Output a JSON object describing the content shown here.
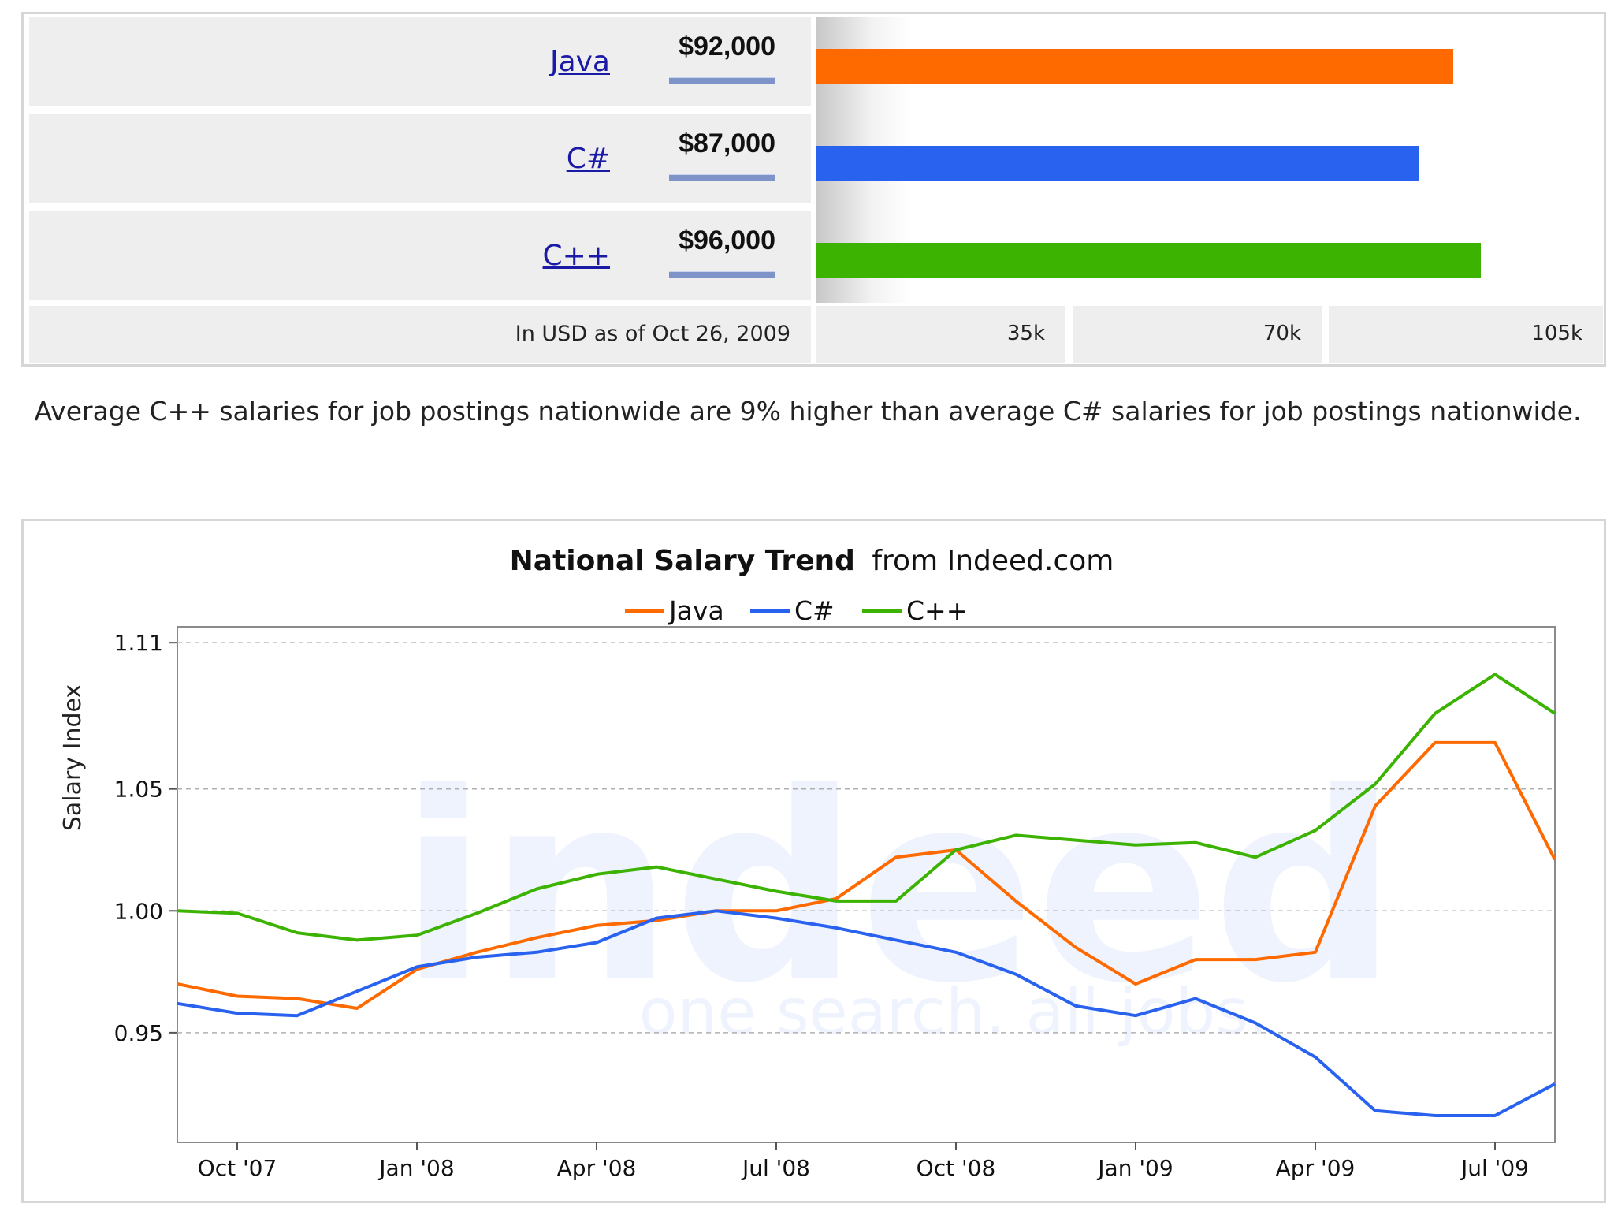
{
  "bar_section": {
    "footnote": "In USD as of Oct 26, 2009",
    "comparison_text": "Average C++ salaries for job postings nationwide are 9% higher than average C# salaries for job postings nationwide."
  },
  "trend_section": {
    "title_bold": "National Salary Trend",
    "title_rest": "from Indeed.com",
    "watermark_main": "indeed",
    "watermark_sub": "one search. all jobs."
  },
  "chart_data": [
    {
      "type": "bar",
      "orientation": "horizontal",
      "categories": [
        "Java",
        "C#",
        "C++"
      ],
      "values": [
        92000,
        87000,
        96000
      ],
      "value_labels": [
        "$92,000",
        "$87,000",
        "$96,000"
      ],
      "colors": [
        "#ff6a00",
        "#2962ee",
        "#3cb300"
      ],
      "x_ticks": [
        35000,
        70000,
        105000
      ],
      "x_tick_labels": [
        "35k",
        "70k",
        "105k"
      ],
      "xlim": [
        0,
        105000
      ]
    },
    {
      "type": "line",
      "title": "National Salary Trend from Indeed.com",
      "ylabel": "Salary Index",
      "ylim": [
        0.905,
        1.112
      ],
      "y_ticks": [
        0.95,
        1.0,
        1.05,
        1.11
      ],
      "y_tick_labels": [
        "0.95",
        "1.00",
        "1.05",
        "1.11"
      ],
      "x_tick_labels": [
        "Oct '07",
        "Jan '08",
        "Apr '08",
        "Jul '08",
        "Oct '08",
        "Jan '09",
        "Apr '09",
        "Jul '09"
      ],
      "x_tick_months": [
        1,
        4,
        7,
        10,
        13,
        16,
        19,
        22
      ],
      "x_months": [
        0,
        1,
        2,
        3,
        4,
        5,
        6,
        7,
        8,
        9,
        10,
        11,
        12,
        13,
        14,
        15,
        16,
        17,
        18,
        19,
        20,
        21,
        22,
        23
      ],
      "grid": true,
      "legend": "top-center",
      "series": [
        {
          "name": "Java",
          "color": "#ff6a00",
          "values": [
            0.97,
            0.965,
            0.964,
            0.96,
            0.976,
            0.983,
            0.989,
            0.994,
            0.996,
            1.0,
            1.0,
            1.005,
            1.022,
            1.025,
            1.004,
            0.985,
            0.97,
            0.98,
            0.98,
            0.983,
            1.043,
            1.069,
            1.069,
            1.021
          ]
        },
        {
          "name": "C#",
          "color": "#2962ee",
          "values": [
            0.962,
            0.958,
            0.957,
            0.967,
            0.977,
            0.981,
            0.983,
            0.987,
            0.997,
            1.0,
            0.997,
            0.993,
            0.988,
            0.983,
            0.974,
            0.961,
            0.957,
            0.964,
            0.954,
            0.94,
            0.918,
            0.916,
            0.916,
            0.929
          ]
        },
        {
          "name": "C++",
          "color": "#3cb300",
          "values": [
            1.0,
            0.999,
            0.991,
            0.988,
            0.99,
            0.999,
            1.009,
            1.015,
            1.018,
            1.013,
            1.008,
            1.004,
            1.004,
            1.025,
            1.031,
            1.029,
            1.027,
            1.028,
            1.022,
            1.033,
            1.052,
            1.081,
            1.097,
            1.081
          ]
        }
      ]
    }
  ]
}
